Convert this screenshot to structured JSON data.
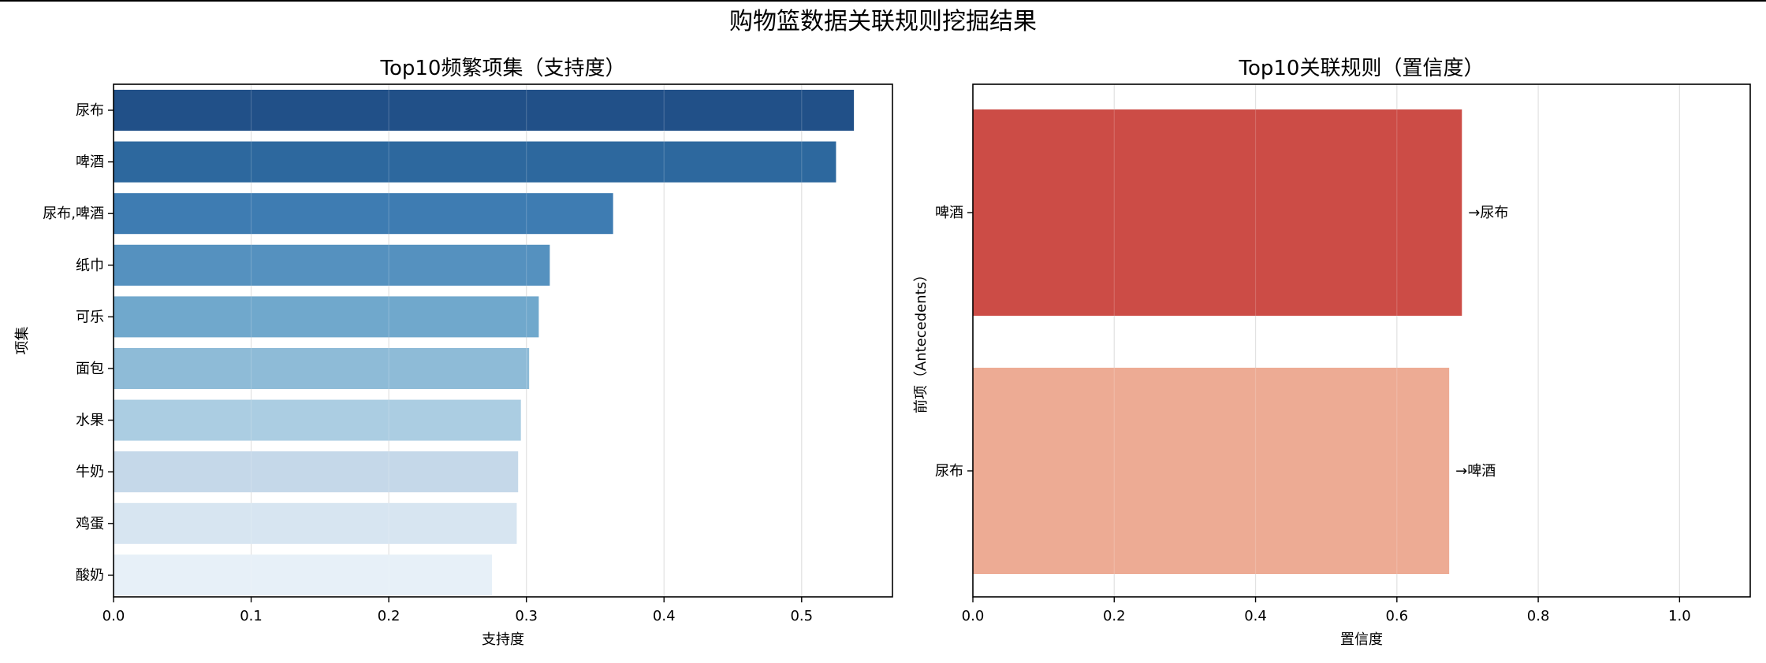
{
  "suptitle": "购物篮数据关联规则挖掘结果",
  "chart_data": [
    {
      "type": "bar",
      "orientation": "horizontal",
      "title": "Top10频繁项集（支持度）",
      "xlabel": "支持度",
      "ylabel": "项集",
      "xlim": [
        0,
        0.566
      ],
      "xticks": [
        "0.0",
        "0.1",
        "0.2",
        "0.3",
        "0.4",
        "0.5"
      ],
      "grid": "x",
      "palette": "Blues_r",
      "categories": [
        "尿布",
        "啤酒",
        "尿布,啤酒",
        "纸巾",
        "可乐",
        "面包",
        "水果",
        "牛奶",
        "鸡蛋",
        "酸奶"
      ],
      "values": [
        0.538,
        0.525,
        0.363,
        0.317,
        0.309,
        0.302,
        0.296,
        0.294,
        0.293,
        0.275
      ],
      "colors": [
        "#1a4a84",
        "#26639b",
        "#3878b0",
        "#4f8dbd",
        "#6ba5ca",
        "#8ab9d6",
        "#a8cbe1",
        "#c3d7e8",
        "#d6e4f1",
        "#e6eff8"
      ]
    },
    {
      "type": "bar",
      "orientation": "horizontal",
      "title": "Top10关联规则（置信度）",
      "xlabel": "置信度",
      "ylabel": "前项（Antecedents）",
      "xlim": [
        0,
        1.1
      ],
      "xticks": [
        "0.0",
        "0.2",
        "0.4",
        "0.6",
        "0.8",
        "1.0"
      ],
      "grid": "x",
      "categories": [
        "啤酒",
        "尿布"
      ],
      "values": [
        0.692,
        0.674
      ],
      "bar_labels": [
        "→尿布",
        "→啤酒"
      ],
      "colors": [
        "#ca4640",
        "#eca891"
      ]
    }
  ]
}
